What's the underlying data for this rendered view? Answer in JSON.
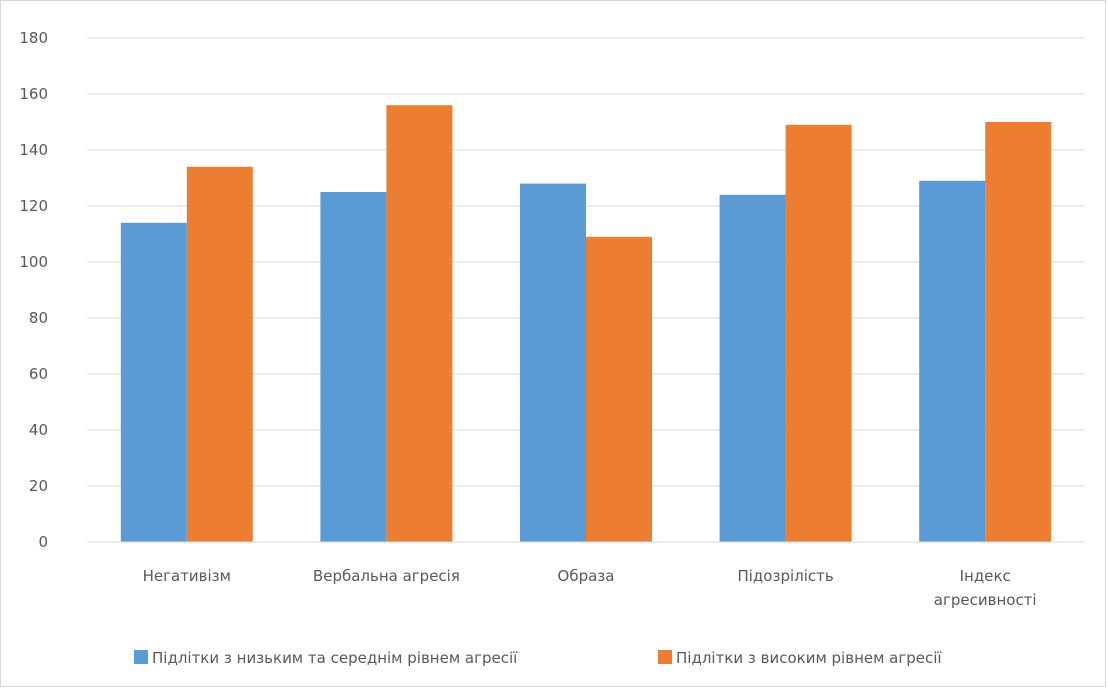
{
  "chart_data": {
    "type": "bar",
    "title": "",
    "xlabel": "",
    "ylabel": "",
    "categories": [
      [
        "Негативізм"
      ],
      [
        "Вербальна агресія"
      ],
      [
        "Образа"
      ],
      [
        "Підозрілість"
      ],
      [
        "Індекс",
        "агресивності"
      ]
    ],
    "series": [
      {
        "name": "Підлітки з низьким та середнім рівнем агресії",
        "color": "#5b9bd5",
        "values": [
          114,
          125,
          128,
          124,
          129
        ]
      },
      {
        "name": "Підлітки з високим рівнем агресії",
        "color": "#ed7d31",
        "values": [
          134,
          156,
          109,
          149,
          150
        ]
      }
    ],
    "ylim": [
      0,
      180
    ],
    "yticks": [
      0,
      20,
      40,
      60,
      80,
      100,
      120,
      140,
      160,
      180
    ],
    "grid": true,
    "legend": "bottom"
  }
}
